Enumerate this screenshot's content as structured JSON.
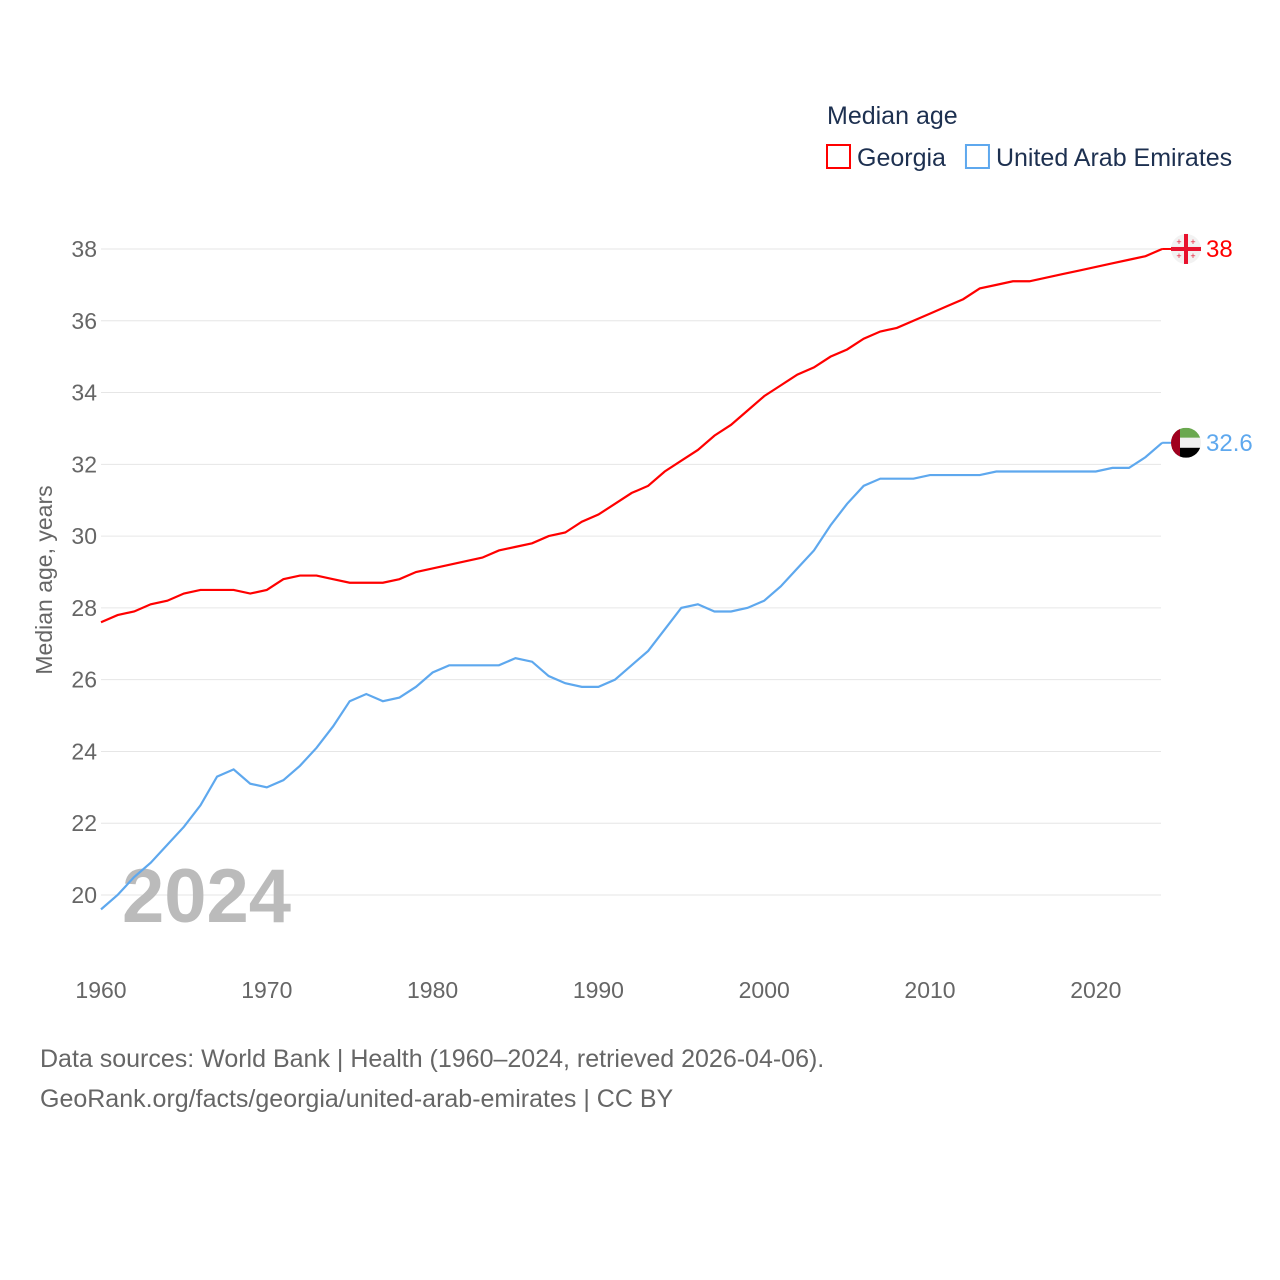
{
  "chart_data": {
    "type": "line",
    "legend_title": "Median age",
    "ylabel": "Median age, years",
    "xlim": [
      1960,
      2024
    ],
    "ylim": [
      19.4,
      38.3
    ],
    "yticks": [
      20,
      22,
      24,
      26,
      28,
      30,
      32,
      34,
      36,
      38
    ],
    "xticks": [
      1960,
      1970,
      1980,
      1990,
      2000,
      2010,
      2020
    ],
    "watermark_year": "2024",
    "legend_placement": "top-right",
    "x_start": 1960,
    "series": [
      {
        "name": "Georgia",
        "color": "#ff0000",
        "end_label": "38",
        "values": [
          27.6,
          27.8,
          27.9,
          28.1,
          28.2,
          28.4,
          28.5,
          28.5,
          28.5,
          28.4,
          28.5,
          28.8,
          28.9,
          28.9,
          28.8,
          28.7,
          28.7,
          28.7,
          28.8,
          29.0,
          29.1,
          29.2,
          29.3,
          29.4,
          29.6,
          29.7,
          29.8,
          30.0,
          30.1,
          30.4,
          30.6,
          30.9,
          31.2,
          31.4,
          31.8,
          32.1,
          32.4,
          32.8,
          33.1,
          33.5,
          33.9,
          34.2,
          34.5,
          34.7,
          35.0,
          35.2,
          35.5,
          35.7,
          35.8,
          36.0,
          36.2,
          36.4,
          36.6,
          36.9,
          37.0,
          37.1,
          37.1,
          37.2,
          37.3,
          37.4,
          37.5,
          37.6,
          37.7,
          37.8,
          38.0
        ]
      },
      {
        "name": "United Arab Emirates",
        "color": "#5ea8ee",
        "end_label": "32.6",
        "values": [
          19.6,
          20.0,
          20.5,
          20.9,
          21.4,
          21.9,
          22.5,
          23.3,
          23.5,
          23.1,
          23.0,
          23.2,
          23.6,
          24.1,
          24.7,
          25.4,
          25.6,
          25.4,
          25.5,
          25.8,
          26.2,
          26.4,
          26.4,
          26.4,
          26.4,
          26.6,
          26.5,
          26.1,
          25.9,
          25.8,
          25.8,
          26.0,
          26.4,
          26.8,
          27.4,
          28.0,
          28.1,
          27.9,
          27.9,
          28.0,
          28.2,
          28.6,
          29.1,
          29.6,
          30.3,
          30.9,
          31.4,
          31.6,
          31.6,
          31.6,
          31.7,
          31.7,
          31.7,
          31.7,
          31.8,
          31.8,
          31.8,
          31.8,
          31.8,
          31.8,
          31.8,
          31.9,
          31.9,
          32.2,
          32.6
        ]
      }
    ]
  },
  "footer": {
    "line1": "Data sources: World Bank | Health (1960–2024, retrieved 2026-04-06).",
    "line2": "GeoRank.org/facts/georgia/united-arab-emirates | CC BY"
  }
}
